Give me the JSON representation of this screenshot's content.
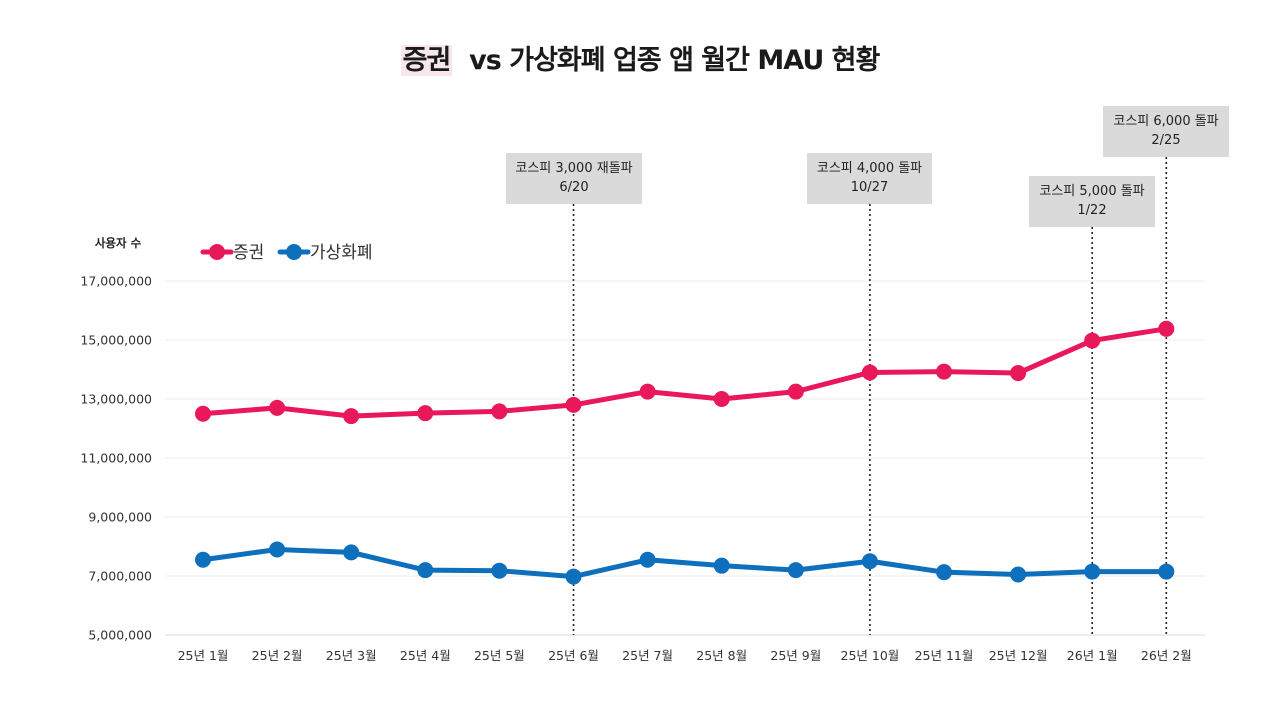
{
  "chart_data": {
    "type": "line",
    "title_highlight": "증권",
    "title_rest": "vs 가상화폐 업종 앱 월간 MAU 현황",
    "ylabel": "사용자 수",
    "ylim": [
      5000000,
      17000000
    ],
    "yticks": [
      5000000,
      7000000,
      9000000,
      11000000,
      13000000,
      15000000,
      17000000
    ],
    "ytick_labels": [
      "5,000,000",
      "7,000,000",
      "9,000,000",
      "11,000,000",
      "13,000,000",
      "15,000,000",
      "17,000,000"
    ],
    "categories": [
      "25년 1월",
      "25년 2월",
      "25년 3월",
      "25년 4월",
      "25년 5월",
      "25년 6월",
      "25년 7월",
      "25년 8월",
      "25년 9월",
      "25년 10월",
      "25년 11월",
      "25년 12월",
      "26년 1월",
      "26년 2월"
    ],
    "series": [
      {
        "name": "증권",
        "color": "#e8185a",
        "values": [
          12500000,
          12700000,
          12420000,
          12520000,
          12580000,
          12800000,
          13250000,
          13000000,
          13250000,
          13900000,
          13930000,
          13880000,
          14980000,
          15380000
        ]
      },
      {
        "name": "가상화폐",
        "color": "#0e6fbd",
        "values": [
          7550000,
          7900000,
          7800000,
          7200000,
          7180000,
          6980000,
          7550000,
          7350000,
          7200000,
          7500000,
          7130000,
          7050000,
          7150000,
          7150000
        ]
      }
    ],
    "legend_position": "top-left",
    "annotations": [
      {
        "category_index": 5,
        "line1": "코스피 3,000 재돌파",
        "line2": "6/20"
      },
      {
        "category_index": 9,
        "line1": "코스피 4,000 돌파",
        "line2": "10/27"
      },
      {
        "category_index": 12,
        "line1": "코스피 5,000 돌파",
        "line2": "1/22"
      },
      {
        "category_index": 13,
        "line1": "코스피 6,000 돌파",
        "line2": "2/25"
      }
    ]
  }
}
